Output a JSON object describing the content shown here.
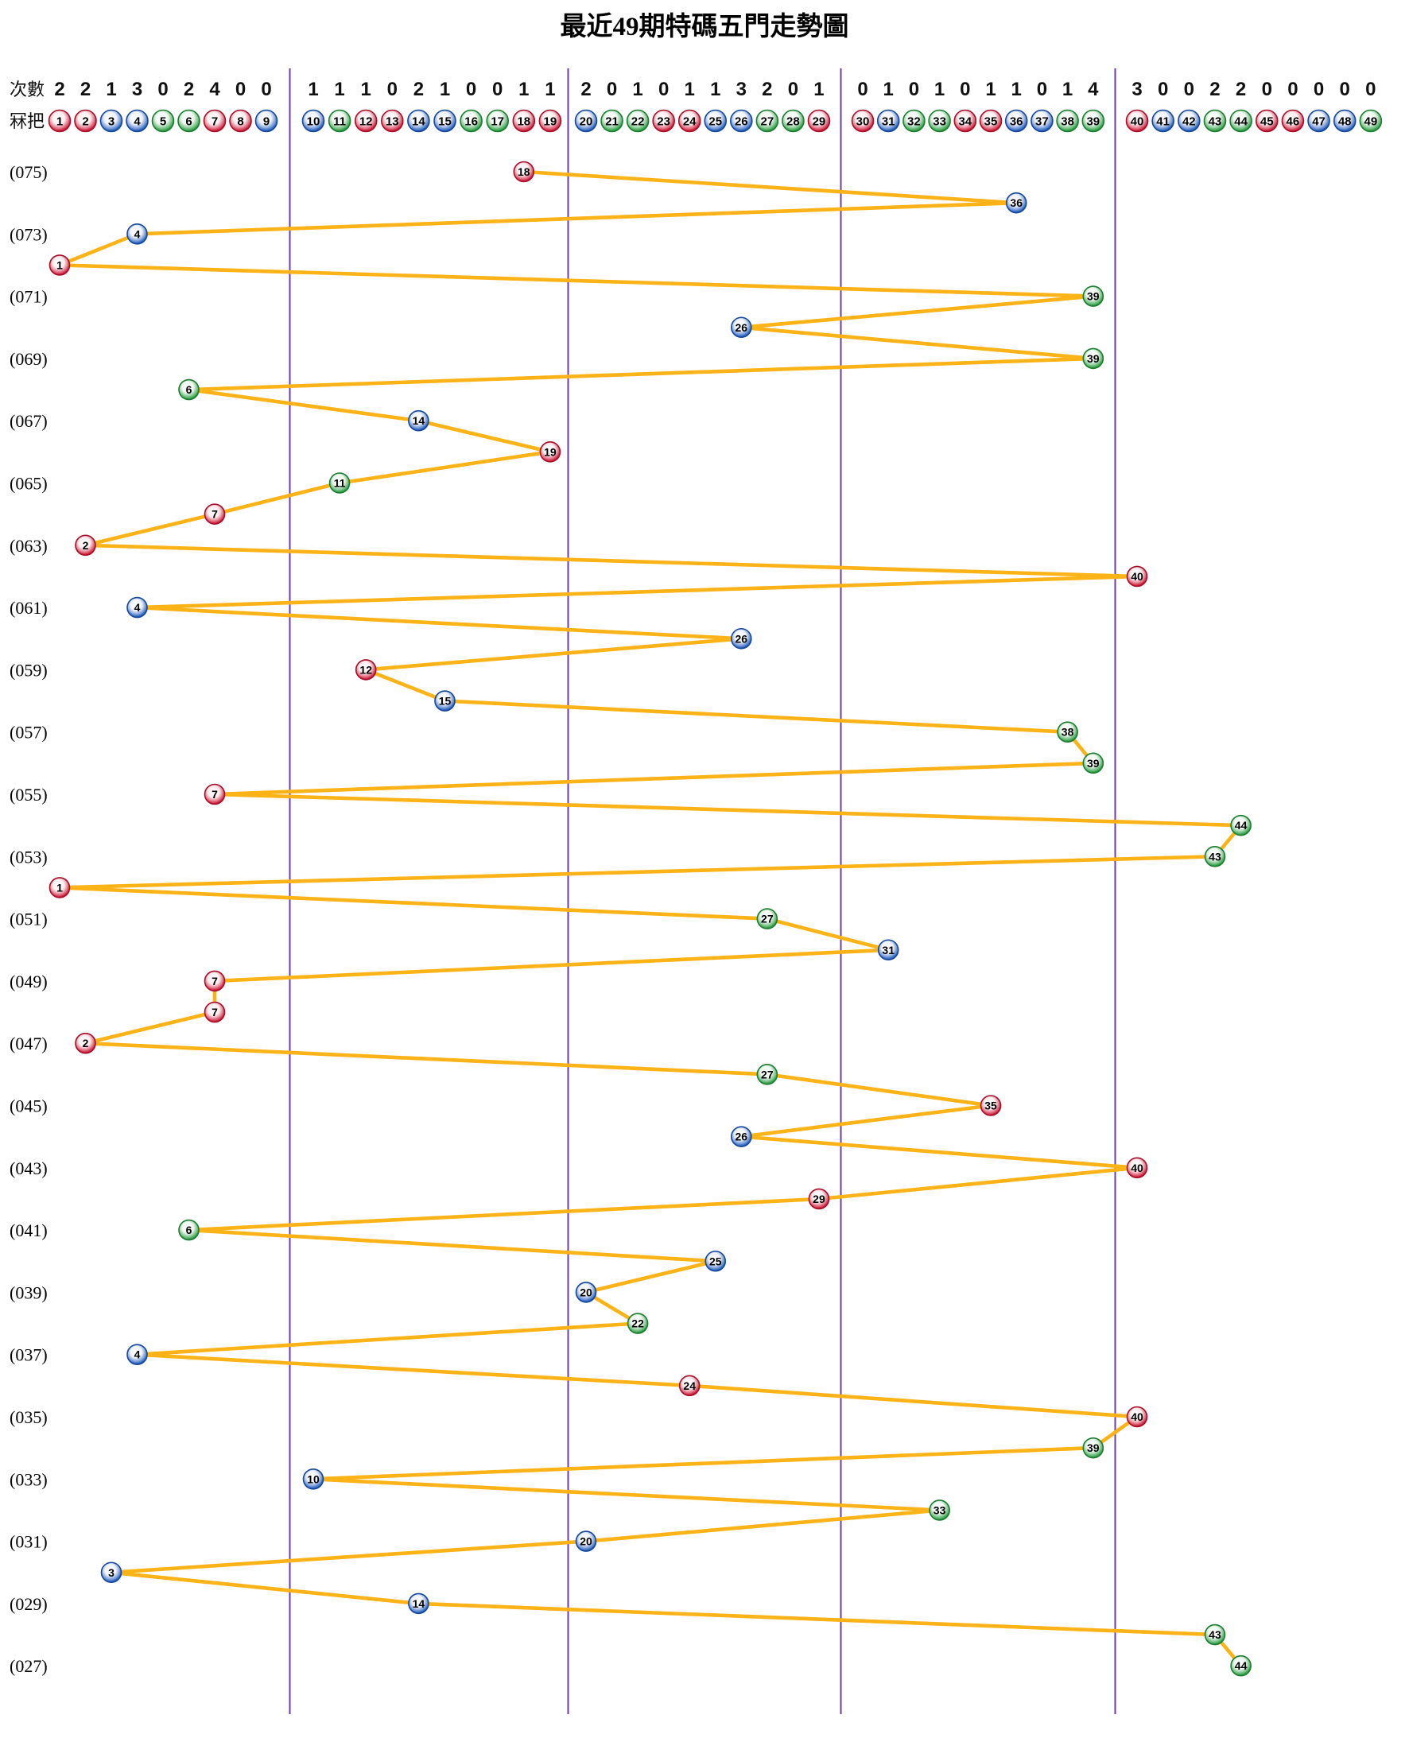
{
  "title": "最近49期特碼五門走勢圖",
  "header": {
    "counts_label": "次數",
    "numbers_label": "冧把"
  },
  "chart_data": {
    "type": "scatter",
    "title": "最近49期特碼五門走勢圖",
    "x_axis": {
      "ball_numbers": [
        1,
        2,
        3,
        4,
        5,
        6,
        7,
        8,
        9,
        10,
        11,
        12,
        13,
        14,
        15,
        16,
        17,
        18,
        19,
        20,
        21,
        22,
        23,
        24,
        25,
        26,
        27,
        28,
        29,
        30,
        31,
        32,
        33,
        34,
        35,
        36,
        37,
        38,
        39,
        40,
        41,
        42,
        43,
        44,
        45,
        46,
        47,
        48,
        49
      ],
      "counts": [
        2,
        2,
        1,
        3,
        0,
        2,
        4,
        0,
        0,
        1,
        1,
        1,
        0,
        2,
        1,
        0,
        0,
        1,
        1,
        2,
        0,
        1,
        0,
        1,
        1,
        3,
        2,
        0,
        1,
        0,
        1,
        0,
        1,
        0,
        1,
        1,
        0,
        1,
        4,
        3,
        0,
        0,
        2,
        2,
        0,
        0,
        0,
        0,
        0
      ]
    },
    "sections": [
      [
        1,
        9
      ],
      [
        10,
        19
      ],
      [
        20,
        29
      ],
      [
        30,
        39
      ],
      [
        40,
        49
      ]
    ],
    "rows": [
      {
        "period": 75,
        "label": "(075)",
        "ball": 18
      },
      {
        "period": 74,
        "label": "",
        "ball": 36
      },
      {
        "period": 73,
        "label": "(073)",
        "ball": 4
      },
      {
        "period": 72,
        "label": "",
        "ball": 1
      },
      {
        "period": 71,
        "label": "(071)",
        "ball": 39
      },
      {
        "period": 70,
        "label": "",
        "ball": 26
      },
      {
        "period": 69,
        "label": "(069)",
        "ball": 39
      },
      {
        "period": 68,
        "label": "",
        "ball": 6
      },
      {
        "period": 67,
        "label": "(067)",
        "ball": 14
      },
      {
        "period": 66,
        "label": "",
        "ball": 19
      },
      {
        "period": 65,
        "label": "(065)",
        "ball": 11
      },
      {
        "period": 64,
        "label": "",
        "ball": 7
      },
      {
        "period": 63,
        "label": "(063)",
        "ball": 2
      },
      {
        "period": 62,
        "label": "",
        "ball": 40
      },
      {
        "period": 61,
        "label": "(061)",
        "ball": 4
      },
      {
        "period": 60,
        "label": "",
        "ball": 26
      },
      {
        "period": 59,
        "label": "(059)",
        "ball": 12
      },
      {
        "period": 58,
        "label": "",
        "ball": 15
      },
      {
        "period": 57,
        "label": "(057)",
        "ball": 38
      },
      {
        "period": 56,
        "label": "",
        "ball": 39
      },
      {
        "period": 55,
        "label": "(055)",
        "ball": 7
      },
      {
        "period": 54,
        "label": "",
        "ball": 44
      },
      {
        "period": 53,
        "label": "(053)",
        "ball": 43
      },
      {
        "period": 52,
        "label": "",
        "ball": 1
      },
      {
        "period": 51,
        "label": "(051)",
        "ball": 27
      },
      {
        "period": 50,
        "label": "",
        "ball": 31
      },
      {
        "period": 49,
        "label": "(049)",
        "ball": 7
      },
      {
        "period": 48,
        "label": "",
        "ball": 7
      },
      {
        "period": 47,
        "label": "(047)",
        "ball": 2
      },
      {
        "period": 46,
        "label": "",
        "ball": 27
      },
      {
        "period": 45,
        "label": "(045)",
        "ball": 35
      },
      {
        "period": 44,
        "label": "",
        "ball": 26
      },
      {
        "period": 43,
        "label": "(043)",
        "ball": 40
      },
      {
        "period": 42,
        "label": "",
        "ball": 29
      },
      {
        "period": 41,
        "label": "(041)",
        "ball": 6
      },
      {
        "period": 40,
        "label": "",
        "ball": 25
      },
      {
        "period": 39,
        "label": "(039)",
        "ball": 20
      },
      {
        "period": 38,
        "label": "",
        "ball": 22
      },
      {
        "period": 37,
        "label": "(037)",
        "ball": 4
      },
      {
        "period": 36,
        "label": "",
        "ball": 24
      },
      {
        "period": 35,
        "label": "(035)",
        "ball": 40
      },
      {
        "period": 34,
        "label": "",
        "ball": 39
      },
      {
        "period": 33,
        "label": "(033)",
        "ball": 10
      },
      {
        "period": 32,
        "label": "",
        "ball": 33
      },
      {
        "period": 31,
        "label": "(031)",
        "ball": 20
      },
      {
        "period": 30,
        "label": "",
        "ball": 3
      },
      {
        "period": 29,
        "label": "(029)",
        "ball": 14
      },
      {
        "period": 28,
        "label": "",
        "ball": 43
      },
      {
        "period": 27,
        "label": "(027)",
        "ball": 44
      }
    ],
    "ball_color_groups": {
      "red": [
        1,
        2,
        7,
        8,
        12,
        13,
        18,
        19,
        23,
        24,
        29,
        30,
        34,
        35,
        40,
        45,
        46
      ],
      "blue": [
        3,
        4,
        9,
        10,
        14,
        15,
        20,
        25,
        26,
        31,
        36,
        37,
        41,
        42,
        47,
        48
      ],
      "green": [
        5,
        6,
        11,
        16,
        17,
        21,
        22,
        27,
        28,
        32,
        33,
        38,
        39,
        43,
        44,
        49
      ]
    },
    "colors": {
      "red": "#cc1130",
      "blue": "#1b57bc",
      "green": "#22993a",
      "line": "#fbb317",
      "divider": "#6a3da6",
      "background": "#ffffff",
      "text": "#000000"
    },
    "legend_position": "none",
    "grid": "section-dividers-only"
  }
}
